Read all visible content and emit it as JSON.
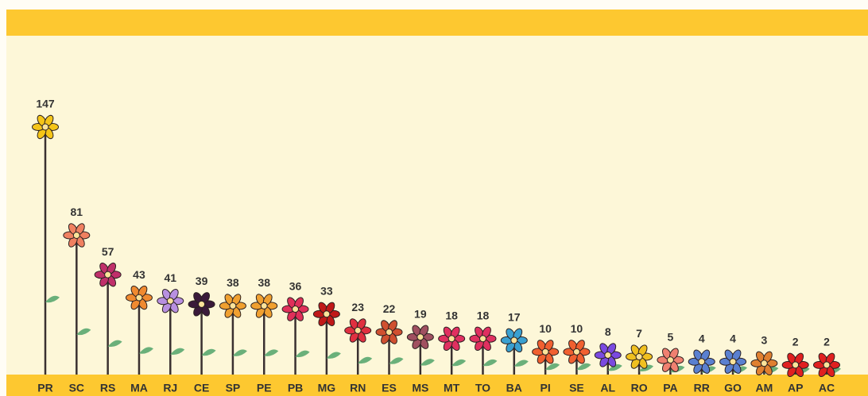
{
  "chart_data": {
    "type": "flower",
    "categories": [
      "PR",
      "SC",
      "RS",
      "MA",
      "RJ",
      "CE",
      "SP",
      "PE",
      "PB",
      "MG",
      "RN",
      "ES",
      "MS",
      "MT",
      "TO",
      "BA",
      "PI",
      "SE",
      "AL",
      "RO",
      "PA",
      "RR",
      "GO",
      "AM",
      "AP",
      "AC"
    ],
    "values": [
      147,
      81,
      57,
      43,
      41,
      39,
      38,
      38,
      36,
      33,
      23,
      22,
      19,
      18,
      18,
      17,
      10,
      10,
      8,
      7,
      5,
      4,
      4,
      3,
      2,
      2
    ],
    "colors": [
      "#f5c518",
      "#f08060",
      "#c0306a",
      "#f08a30",
      "#b890e0",
      "#3a1a3a",
      "#f0a030",
      "#f0a030",
      "#e0305a",
      "#c01818",
      "#e03040",
      "#d05030",
      "#a05060",
      "#e03060",
      "#e03060",
      "#3aa0d0",
      "#f06030",
      "#f06030",
      "#7a4ae0",
      "#f0c020",
      "#f08070",
      "#5a80d0",
      "#5a80d0",
      "#e08030",
      "#e02020",
      "#e02020"
    ]
  }
}
